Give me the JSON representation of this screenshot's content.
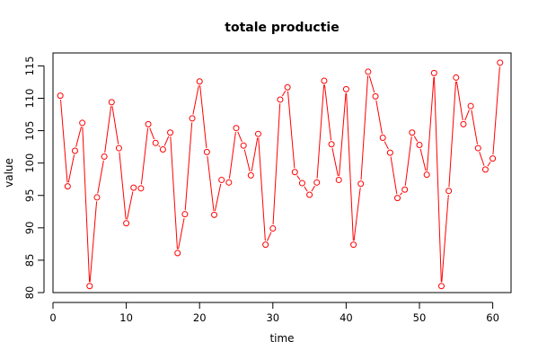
{
  "chart_data": {
    "type": "line",
    "title": "totale productie",
    "xlabel": "time",
    "ylabel": "value",
    "xlim": [
      0,
      62.5
    ],
    "ylim": [
      80,
      117
    ],
    "xticks": [
      0,
      10,
      20,
      30,
      40,
      50,
      60
    ],
    "yticks": [
      80,
      85,
      90,
      95,
      100,
      105,
      110,
      115
    ],
    "grid": false,
    "legend": "none",
    "series": [
      {
        "color": "#ff0000",
        "marker": "open-circle",
        "x": [
          1,
          2,
          3,
          4,
          5,
          6,
          7,
          8,
          9,
          10,
          11,
          12,
          13,
          14,
          15,
          16,
          17,
          18,
          19,
          20,
          21,
          22,
          23,
          24,
          25,
          26,
          27,
          28,
          29,
          30,
          31,
          32,
          33,
          34,
          35,
          36,
          37,
          38,
          39,
          40,
          41,
          42,
          43,
          44,
          45,
          46,
          47,
          48,
          49,
          50,
          51,
          52,
          53,
          54,
          55,
          56,
          57,
          58,
          59,
          60,
          61
        ],
        "values": [
          110.4,
          96.4,
          101.9,
          106.2,
          81.0,
          94.7,
          101.0,
          109.4,
          102.3,
          90.7,
          96.2,
          96.1,
          106.0,
          103.1,
          102.1,
          104.7,
          86.1,
          92.1,
          106.9,
          112.6,
          101.7,
          92.0,
          97.4,
          97.0,
          105.4,
          102.7,
          98.1,
          104.5,
          87.4,
          89.9,
          109.8,
          111.7,
          98.6,
          96.9,
          95.1,
          97.0,
          112.7,
          102.9,
          97.4,
          111.4,
          87.4,
          96.8,
          114.1,
          110.3,
          103.9,
          101.6,
          94.6,
          95.9,
          104.7,
          102.8,
          98.2,
          113.9,
          81.0,
          95.7,
          113.2,
          106.0,
          108.8,
          102.3,
          99.0,
          100.7,
          115.5
        ]
      }
    ]
  }
}
